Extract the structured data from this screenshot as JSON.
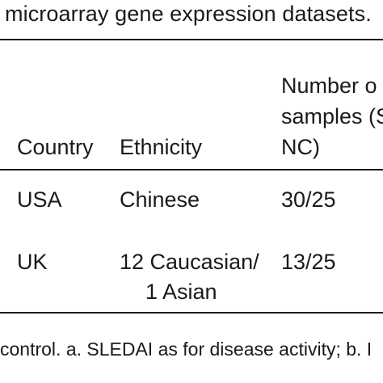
{
  "caption": "microarray gene expression datasets.",
  "table": {
    "headers": {
      "country": "Country",
      "ethnicity": "Ethnicity",
      "samples_line1": "Number o",
      "samples_line2": "samples (S",
      "samples_line3": "NC)"
    },
    "rows": [
      {
        "country": "USA",
        "ethnicity_line1": "Chinese",
        "ethnicity_line2": "",
        "samples": "30/25"
      },
      {
        "country": "UK",
        "ethnicity_line1": "12 Caucasian/",
        "ethnicity_line2": "1 Asian",
        "samples": "13/25"
      }
    ]
  },
  "footnote": "control. a. SLEDAI as for disease activity; b. I"
}
